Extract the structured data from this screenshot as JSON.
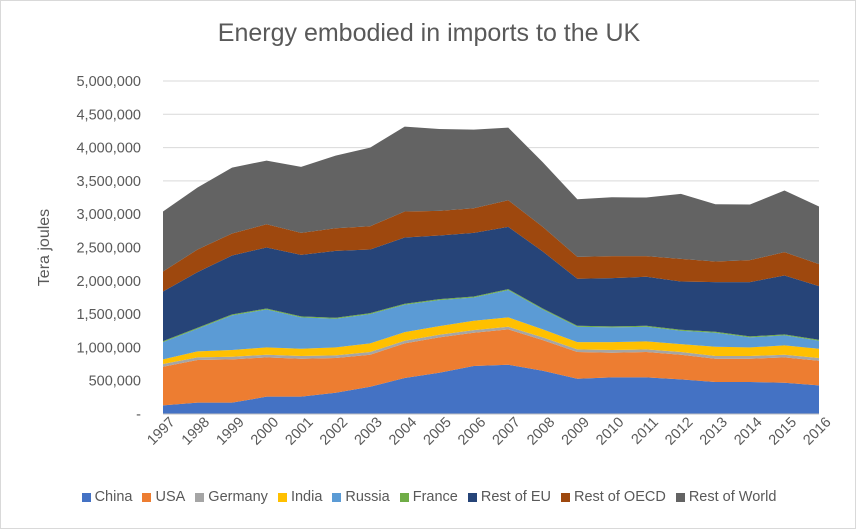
{
  "chart_data": {
    "type": "area",
    "stacked": true,
    "title": "Energy embodied in imports to the UK",
    "xlabel": "",
    "ylabel": "Tera joules",
    "ylim": [
      0,
      5000000
    ],
    "yticks": [
      0,
      500000,
      1000000,
      1500000,
      2000000,
      2500000,
      3000000,
      3500000,
      4000000,
      4500000,
      5000000
    ],
    "ytick_labels": [
      "-",
      "500,000",
      "1,000,000",
      "1,500,000",
      "2,000,000",
      "2,500,000",
      "3,000,000",
      "3,500,000",
      "4,000,000",
      "4,500,000",
      "5,000,000"
    ],
    "grid": true,
    "legend_position": "bottom",
    "categories": [
      "1997",
      "1998",
      "1999",
      "2000",
      "2001",
      "2002",
      "2003",
      "2004",
      "2005",
      "2006",
      "2007",
      "2008",
      "2009",
      "2010",
      "2011",
      "2012",
      "2013",
      "2014",
      "2015",
      "2016"
    ],
    "series": [
      {
        "name": "China",
        "color": "#4472C4",
        "values": [
          130000,
          170000,
          170000,
          260000,
          260000,
          320000,
          410000,
          540000,
          620000,
          720000,
          740000,
          650000,
          530000,
          550000,
          550000,
          520000,
          480000,
          480000,
          470000,
          430000
        ]
      },
      {
        "name": "USA",
        "color": "#ED7D31",
        "values": [
          580000,
          640000,
          650000,
          590000,
          570000,
          520000,
          480000,
          520000,
          530000,
          500000,
          530000,
          460000,
          400000,
          370000,
          380000,
          370000,
          350000,
          350000,
          380000,
          370000
        ]
      },
      {
        "name": "Germany",
        "color": "#A5A5A5",
        "values": [
          40000,
          40000,
          40000,
          40000,
          40000,
          40000,
          40000,
          40000,
          40000,
          40000,
          40000,
          40000,
          40000,
          40000,
          40000,
          40000,
          40000,
          40000,
          40000,
          40000
        ]
      },
      {
        "name": "India",
        "color": "#FFC000",
        "values": [
          70000,
          90000,
          100000,
          110000,
          110000,
          120000,
          130000,
          130000,
          130000,
          140000,
          140000,
          120000,
          110000,
          120000,
          120000,
          120000,
          140000,
          130000,
          140000,
          140000
        ]
      },
      {
        "name": "Russia",
        "color": "#5B9BD5",
        "values": [
          260000,
          340000,
          520000,
          570000,
          470000,
          430000,
          440000,
          410000,
          390000,
          350000,
          410000,
          300000,
          230000,
          220000,
          220000,
          200000,
          210000,
          150000,
          150000,
          120000
        ]
      },
      {
        "name": "France",
        "color": "#70AD47",
        "values": [
          15000,
          15000,
          15000,
          15000,
          15000,
          15000,
          15000,
          15000,
          15000,
          15000,
          15000,
          15000,
          15000,
          15000,
          15000,
          15000,
          15000,
          15000,
          15000,
          15000
        ]
      },
      {
        "name": "Rest of EU",
        "color": "#264478",
        "values": [
          745000,
          835000,
          885000,
          915000,
          925000,
          1005000,
          955000,
          995000,
          955000,
          955000,
          935000,
          855000,
          705000,
          725000,
          735000,
          725000,
          745000,
          815000,
          885000,
          805000
        ]
      },
      {
        "name": "Rest of OECD",
        "color": "#9E480E",
        "values": [
          300000,
          340000,
          330000,
          350000,
          330000,
          340000,
          350000,
          390000,
          370000,
          370000,
          400000,
          370000,
          330000,
          330000,
          310000,
          340000,
          310000,
          330000,
          350000,
          330000
        ]
      },
      {
        "name": "Rest of World",
        "color": "#636363",
        "values": [
          900000,
          930000,
          990000,
          955000,
          990000,
          1090000,
          1180000,
          1275000,
          1230000,
          1180000,
          1090000,
          970000,
          865000,
          885000,
          880000,
          975000,
          860000,
          835000,
          925000,
          865000
        ]
      }
    ]
  }
}
